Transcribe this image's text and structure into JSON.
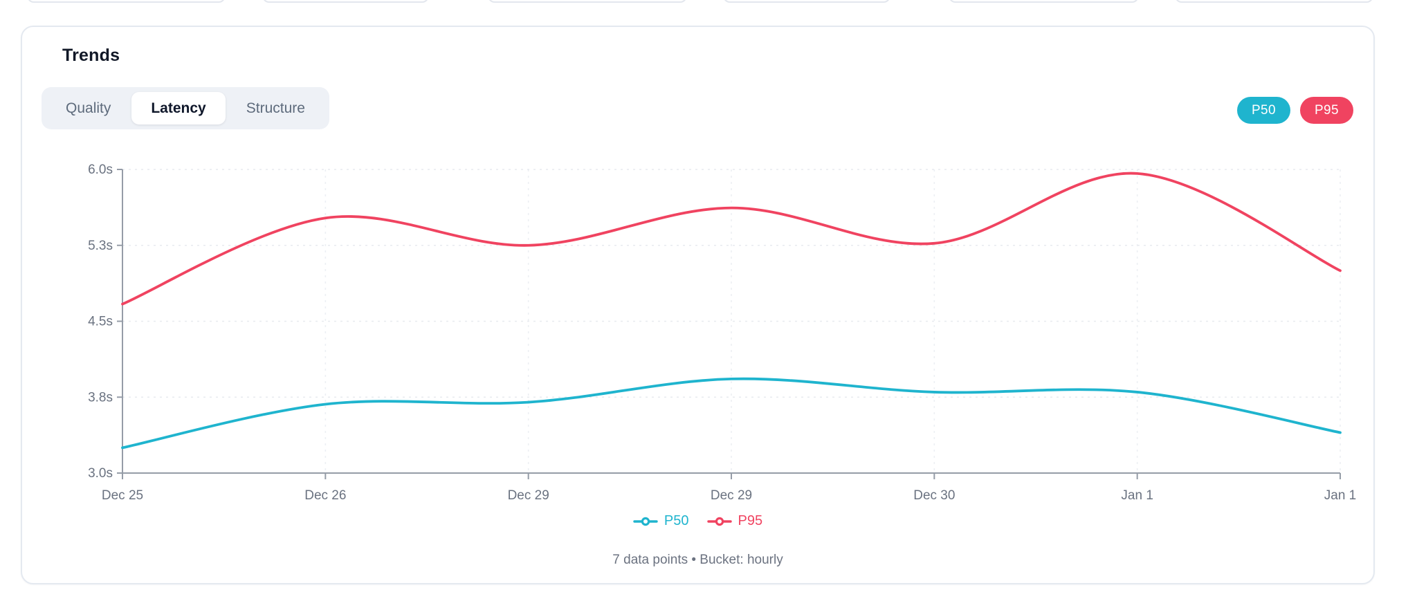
{
  "card": {
    "title": "Trends",
    "tabs": [
      {
        "label": "Quality",
        "active": false
      },
      {
        "label": "Latency",
        "active": true
      },
      {
        "label": "Structure",
        "active": false
      }
    ],
    "series_badges": [
      {
        "label": "P50",
        "color": "#1fb4ce"
      },
      {
        "label": "P95",
        "color": "#f04360"
      }
    ],
    "footer_note": "7 data points • Bucket: hourly"
  },
  "chart_data": {
    "type": "line",
    "x_labels": [
      "Dec 25",
      "Dec 26",
      "Dec 29",
      "Dec 29",
      "Dec 30",
      "Jan 1",
      "Jan 1"
    ],
    "series": [
      {
        "name": "P50",
        "color": "#1fb4ce",
        "values": [
          3.25,
          3.68,
          3.7,
          3.93,
          3.8,
          3.8,
          3.4
        ]
      },
      {
        "name": "P95",
        "color": "#f04360",
        "values": [
          4.67,
          5.52,
          5.25,
          5.62,
          5.27,
          5.96,
          5.0
        ]
      }
    ],
    "unit": "s",
    "ylim": [
      3.0,
      6.0
    ],
    "y_ticks": [
      {
        "value": 6.0,
        "label": "6.0s"
      },
      {
        "value": 5.25,
        "label": "5.3s"
      },
      {
        "value": 4.5,
        "label": "4.5s"
      },
      {
        "value": 3.75,
        "label": "3.8s"
      },
      {
        "value": 3.0,
        "label": "3.0s"
      }
    ],
    "grid": "dashed",
    "legend_position": "bottom",
    "points_count": 7,
    "bucket": "hourly"
  },
  "colors": {
    "axis": "#959ca7",
    "grid": "#e7eaef",
    "tick_text": "#6a7280"
  }
}
